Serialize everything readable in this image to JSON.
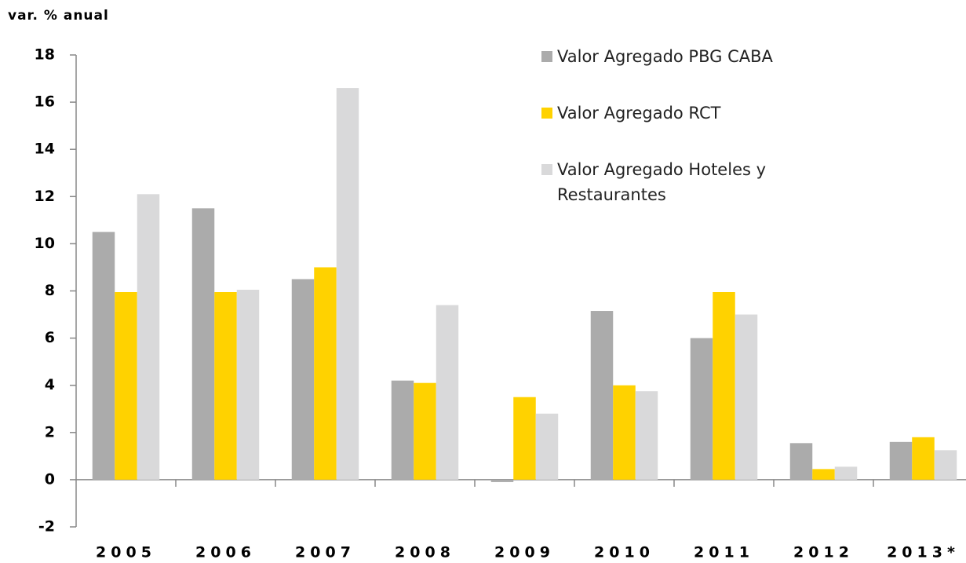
{
  "chart_data": {
    "type": "bar",
    "y_label": "var. % anual",
    "categories": [
      "2005",
      "2006",
      "2007",
      "2008",
      "2009",
      "2010",
      "2011",
      "2012",
      "2013*"
    ],
    "series": [
      {
        "name": "Valor Agregado PBG CABA",
        "color": "#ababab",
        "values": [
          10.5,
          11.5,
          8.5,
          4.2,
          -0.1,
          7.15,
          6.0,
          1.55,
          1.6
        ]
      },
      {
        "name": "Valor Agregado RCT",
        "color": "#ffd200",
        "values": [
          7.95,
          7.95,
          9.0,
          4.1,
          3.5,
          4.0,
          7.95,
          0.45,
          1.8
        ]
      },
      {
        "name": "Valor Agregado Hoteles y Restaurantes",
        "color": "#d9d9da",
        "values": [
          12.1,
          8.05,
          16.6,
          7.4,
          2.8,
          3.75,
          7.0,
          0.55,
          1.25
        ]
      }
    ],
    "ylim": [
      -2,
      18
    ],
    "yticks": [
      -2,
      0,
      2,
      4,
      6,
      8,
      10,
      12,
      14,
      16,
      18
    ],
    "legend": "upper right"
  }
}
